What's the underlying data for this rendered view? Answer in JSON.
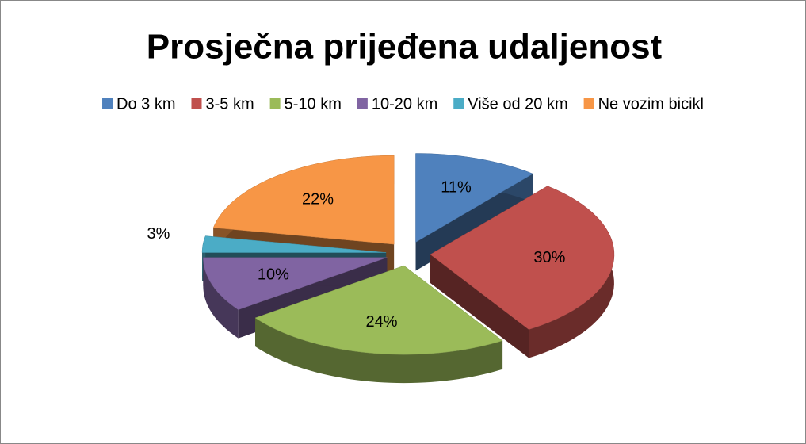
{
  "chart_data": {
    "type": "pie",
    "title": "Prosječna prijeđena udaljenost",
    "categories": [
      "Do 3 km",
      "3-5 km",
      "5-10 km",
      "10-20 km",
      "Više od 20 km",
      "Ne vozim bicikl"
    ],
    "values": [
      11,
      30,
      24,
      10,
      3,
      22
    ],
    "value_labels": [
      "11%",
      "30%",
      "24%",
      "10%",
      "3%",
      "22%"
    ],
    "colors": [
      "#4f81bd",
      "#c0504d",
      "#9bbb59",
      "#8064a2",
      "#4bacc6",
      "#f79646"
    ],
    "legend": "top"
  }
}
